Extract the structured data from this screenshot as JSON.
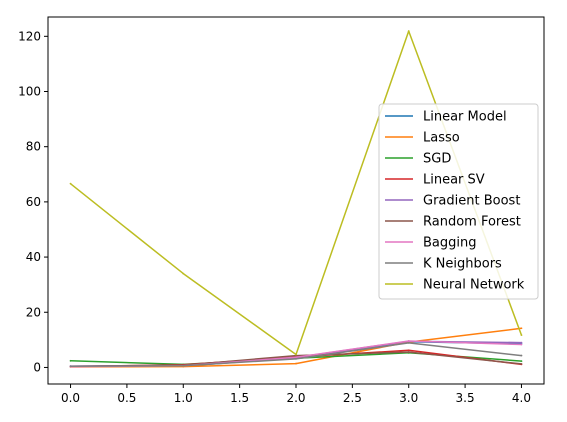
{
  "chart_data": {
    "type": "line",
    "title": "",
    "xlabel": "",
    "ylabel": "",
    "x": [
      0,
      1,
      2,
      3,
      4
    ],
    "xlim": [
      -0.2,
      4.2
    ],
    "ylim": [
      -6,
      127
    ],
    "xticks": [
      "0.0",
      "0.5",
      "1.0",
      "1.5",
      "2.0",
      "2.5",
      "3.0",
      "3.5",
      "4.0"
    ],
    "yticks": [
      "0",
      "20",
      "40",
      "60",
      "80",
      "100",
      "120"
    ],
    "grid": false,
    "legend_position": "center-right",
    "series": [
      {
        "name": "Linear Model",
        "color": "#1f77b4",
        "values": [
          0.3,
          0.5,
          3.5,
          9.3,
          8.6
        ]
      },
      {
        "name": "Lasso",
        "color": "#ff7f0e",
        "values": [
          0.2,
          0.3,
          1.4,
          9.2,
          14.2
        ]
      },
      {
        "name": "SGD",
        "color": "#2ca02c",
        "values": [
          2.4,
          1.1,
          3.3,
          5.3,
          2.3
        ]
      },
      {
        "name": "Linear SV",
        "color": "#d62728",
        "values": [
          0.3,
          1.0,
          3.8,
          6.2,
          1.1
        ]
      },
      {
        "name": "Gradient Boost",
        "color": "#9467bd",
        "values": [
          0.5,
          0.7,
          3.6,
          9.5,
          9.0
        ]
      },
      {
        "name": "Random Forest",
        "color": "#8c564b",
        "values": [
          0.4,
          0.8,
          4.3,
          5.6,
          1.3
        ]
      },
      {
        "name": "Bagging",
        "color": "#e377c2",
        "values": [
          0.3,
          0.6,
          3.7,
          9.6,
          8.3
        ]
      },
      {
        "name": "K Neighbors",
        "color": "#7f7f7f",
        "values": [
          0.4,
          0.6,
          3.1,
          8.9,
          4.3
        ]
      },
      {
        "name": "Neural Network",
        "color": "#bcbd22",
        "values": [
          66.6,
          34.0,
          4.7,
          121.9,
          11.7
        ]
      }
    ]
  }
}
